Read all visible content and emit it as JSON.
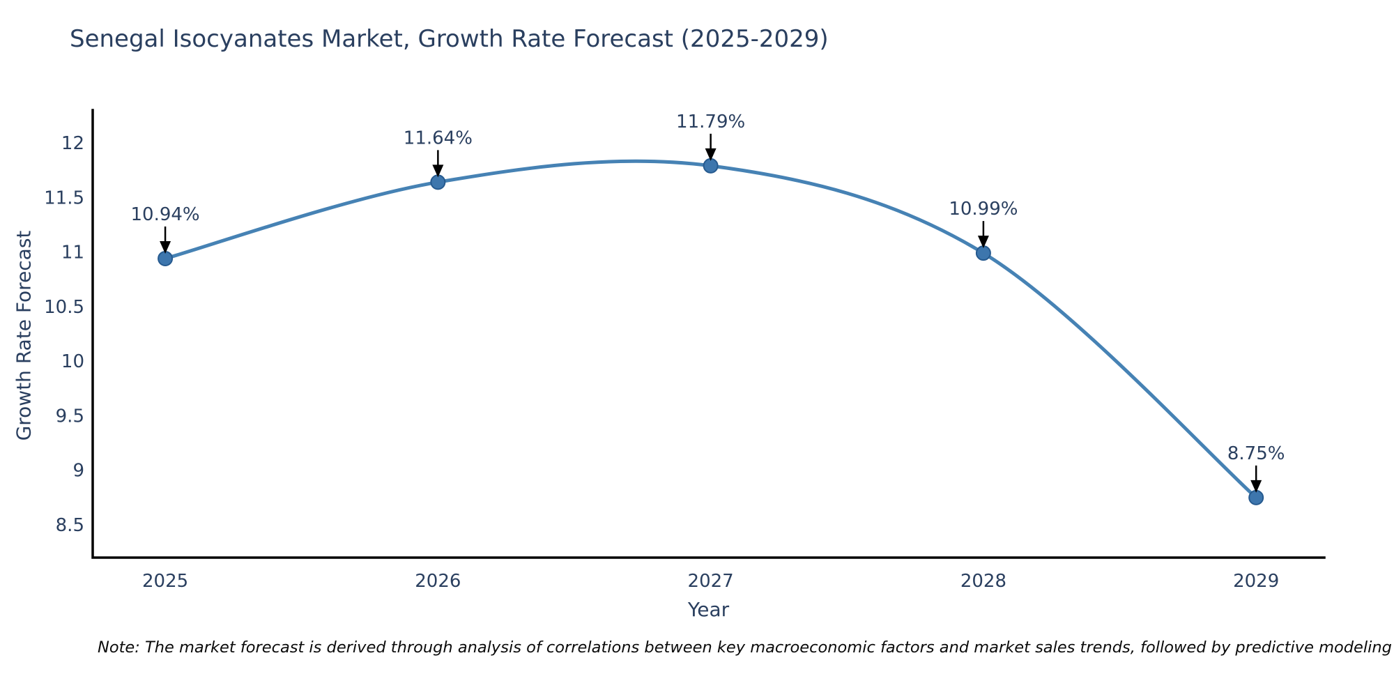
{
  "chart_data": {
    "type": "line",
    "title": "Senegal Isocyanates Market, Growth Rate Forecast (2025-2029)",
    "xlabel": "Year",
    "ylabel": "Growth Rate Forecast",
    "x": [
      2025,
      2026,
      2027,
      2028,
      2029
    ],
    "values": [
      10.94,
      11.64,
      11.79,
      10.99,
      8.75
    ],
    "point_labels": [
      "10.94%",
      "11.64%",
      "11.79%",
      "10.99%",
      "8.75%"
    ],
    "x_tick_labels": [
      "2025",
      "2026",
      "2027",
      "2028",
      "2029"
    ],
    "y_ticks": [
      8.5,
      9,
      9.5,
      10,
      10.5,
      11,
      11.5,
      12
    ],
    "y_tick_labels": [
      "8.5",
      "9",
      "9.5",
      "10",
      "10.5",
      "11",
      "11.5",
      "12"
    ],
    "xlim": [
      2024.734,
      2029.25
    ],
    "ylim": [
      8.2,
      12.3
    ],
    "grid": false,
    "legend": "none",
    "line_shape": "spline",
    "colors": {
      "line": "#4682b4",
      "marker_fill": "#3d76ad",
      "marker_edge": "#265a8f",
      "axis": "#000000",
      "text": "#2a3f5f",
      "annotation_arrow": "#000000",
      "note_text": "#0b0b0b",
      "background": "#ffffff"
    },
    "note": "Note: The market forecast is derived through analysis of correlations between key macroeconomic factors and market sales trends, followed by predictive modeling to project future sal"
  }
}
